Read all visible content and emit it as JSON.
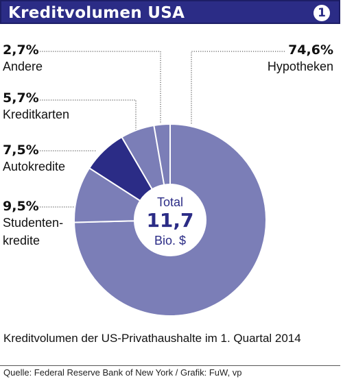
{
  "header": {
    "title": "Kreditvolumen USA",
    "badge": "1"
  },
  "labels": {
    "andere": {
      "pct": "2,7%",
      "name": "Andere"
    },
    "kreditkarten": {
      "pct": "5,7%",
      "name": "Kreditkarten"
    },
    "autokredite": {
      "pct": "7,5%",
      "name": "Autokredite"
    },
    "studentenkredite": {
      "pct": "9,5%",
      "name_line1": "Studenten-",
      "name_line2": "kredite"
    },
    "hypotheken": {
      "pct": "74,6%",
      "name": "Hypotheken"
    }
  },
  "center": {
    "line1": "Total",
    "value": "11,7",
    "unit": "Bio. $"
  },
  "subtitle": "Kreditvolumen der US-Privathaushalte im 1. Quartal 2014",
  "source": "Quelle: Federal Reserve Bank of New York / Grafik: FuW, vp",
  "chart_data": {
    "type": "pie",
    "total": "11,7 Bio. $",
    "slices": [
      {
        "label": "Hypotheken",
        "value": 74.6,
        "color": "#7b7eb7"
      },
      {
        "label": "Studentenkredite",
        "value": 9.5,
        "color": "#7b7eb7"
      },
      {
        "label": "Autokredite",
        "value": 7.5,
        "color": "#2b2c86"
      },
      {
        "label": "Kreditkarten",
        "value": 5.7,
        "color": "#7b7eb7"
      },
      {
        "label": "Andere",
        "value": 2.7,
        "color": "#7b7eb7"
      }
    ]
  }
}
